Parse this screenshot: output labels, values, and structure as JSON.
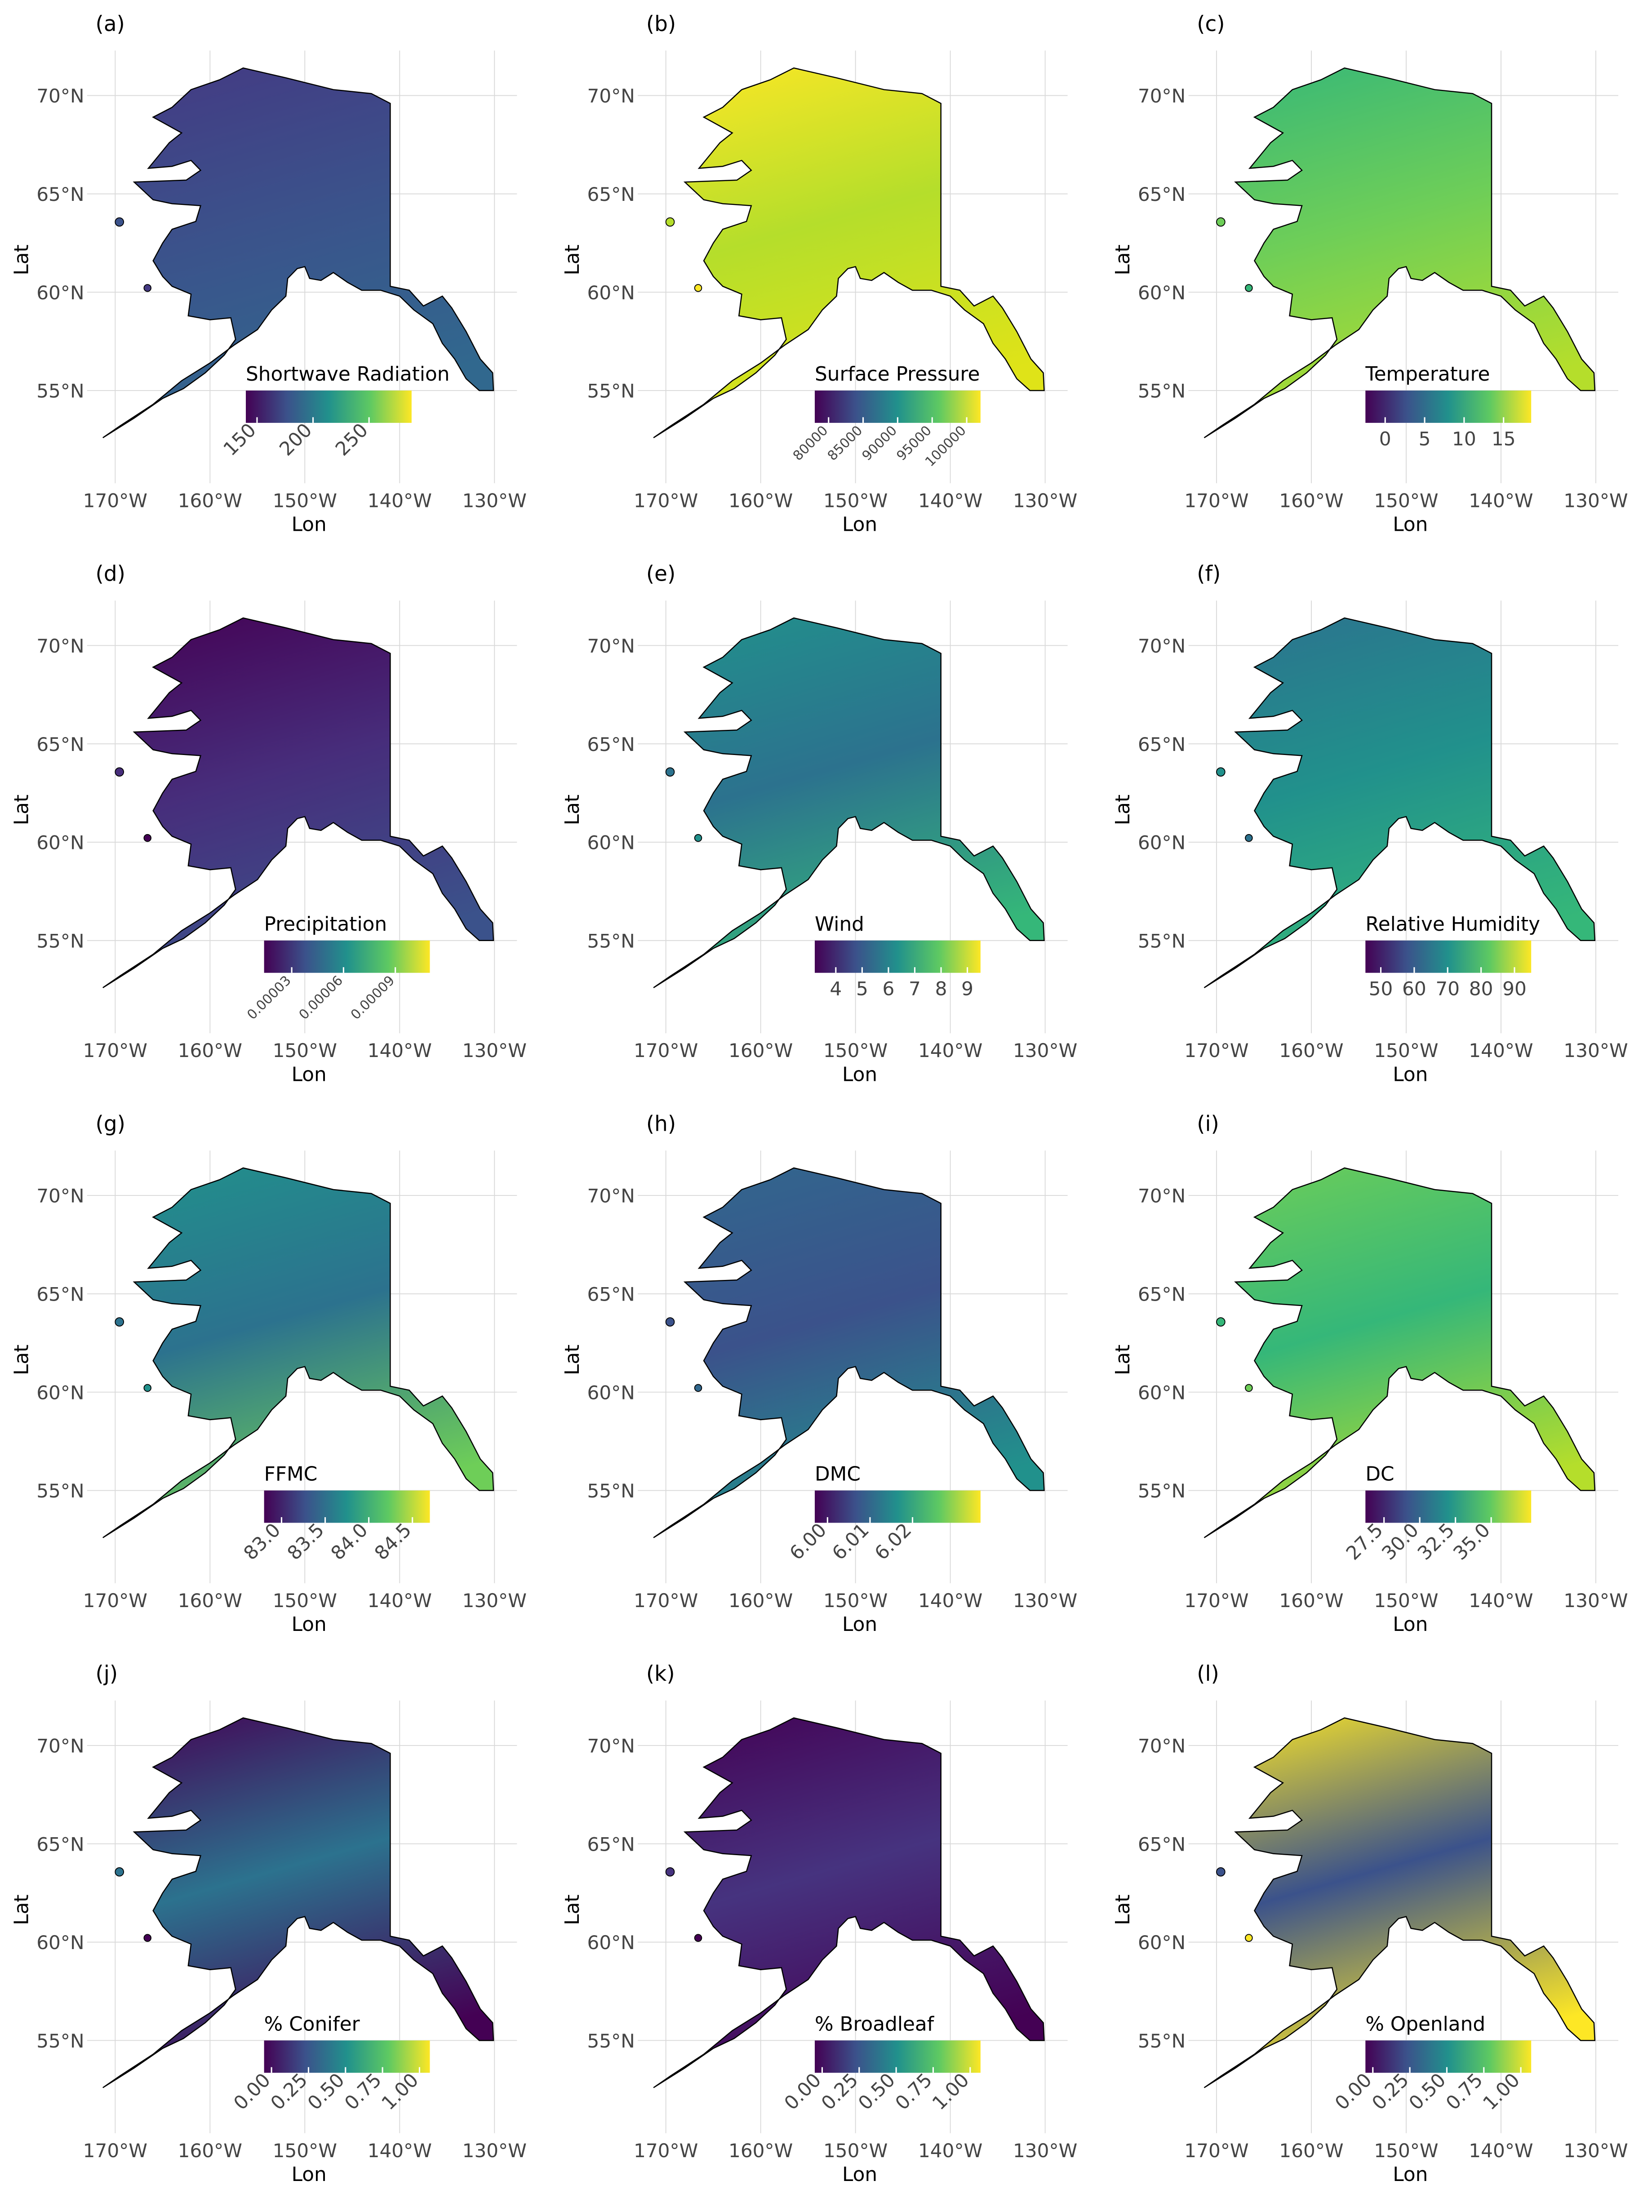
{
  "x_title": "Lon",
  "y_title": "Lat",
  "lat_ticks": [
    {
      "value": 55,
      "label": "55°N"
    },
    {
      "value": 60,
      "label": "60°N"
    },
    {
      "value": 65,
      "label": "65°N"
    },
    {
      "value": 70,
      "label": "70°N"
    }
  ],
  "lon_ticks": [
    {
      "value": -170,
      "label": "170°W"
    },
    {
      "value": -160,
      "label": "160°W"
    },
    {
      "value": -150,
      "label": "150°W"
    },
    {
      "value": -140,
      "label": "140°W"
    },
    {
      "value": -130,
      "label": "130°W"
    }
  ],
  "panels": [
    {
      "label": "(a)",
      "legend_title": "Shortwave Radiation",
      "colorbar": {
        "lim": [
          140,
          288
        ],
        "ticks": [
          150,
          200,
          250
        ]
      }
    },
    {
      "label": "(b)",
      "legend_title": "Surface Pressure",
      "colorbar": {
        "lim": [
          78000,
          102000
        ],
        "ticks": [
          80000,
          85000,
          90000,
          95000,
          100000
        ]
      }
    },
    {
      "label": "(c)",
      "legend_title": "Temperature",
      "colorbar": {
        "lim": [
          -2.5,
          18.5
        ],
        "ticks": [
          0,
          5,
          10,
          15
        ]
      }
    },
    {
      "label": "(d)",
      "legend_title": "Precipitation",
      "colorbar": {
        "lim": [
          1.4e-05,
          0.00011
        ],
        "ticks": [
          3e-05,
          6e-05,
          9e-05
        ]
      }
    },
    {
      "label": "(e)",
      "legend_title": "Wind",
      "colorbar": {
        "lim": [
          3.2,
          9.5
        ],
        "ticks": [
          4,
          5,
          6,
          7,
          8,
          9
        ]
      }
    },
    {
      "label": "(f)",
      "legend_title": "Relative Humidity",
      "colorbar": {
        "lim": [
          45.4,
          95
        ],
        "ticks": [
          50,
          60,
          70,
          80,
          90
        ]
      }
    },
    {
      "label": "(g)",
      "legend_title": "FFMC",
      "colorbar": {
        "lim": [
          82.8,
          84.7
        ],
        "ticks": [
          {
            "value": 83,
            "label": "83.0"
          },
          83.5,
          {
            "value": 84,
            "label": "84.0"
          },
          84.5
        ]
      }
    },
    {
      "label": "(h)",
      "legend_title": "DMC",
      "colorbar": {
        "lim": [
          5.997,
          6.036
        ],
        "ticks": [
          {
            "value": 6,
            "label": "6.00"
          },
          6.01,
          6.02
        ]
      }
    },
    {
      "label": "(i)",
      "legend_title": "DC",
      "colorbar": {
        "lim": [
          26.2,
          37.8
        ],
        "ticks": [
          27.5,
          {
            "value": 30,
            "label": "30.0"
          },
          32.5,
          {
            "value": 35,
            "label": "35.0"
          }
        ]
      }
    },
    {
      "label": "(j)",
      "legend_title": "% Conifer",
      "colorbar": {
        "lim": [
          -0.05,
          1.07
        ],
        "ticks": [
          {
            "value": 0,
            "label": "0.00"
          },
          0.25,
          {
            "value": 0.5,
            "label": "0.50"
          },
          0.75,
          {
            "value": 1,
            "label": "1.00"
          }
        ]
      }
    },
    {
      "label": "(k)",
      "legend_title": "% Broadleaf",
      "colorbar": {
        "lim": [
          -0.05,
          1.07
        ],
        "ticks": [
          {
            "value": 0,
            "label": "0.00"
          },
          0.25,
          {
            "value": 0.5,
            "label": "0.50"
          },
          0.75,
          {
            "value": 1,
            "label": "1.00"
          }
        ]
      }
    },
    {
      "label": "(l)",
      "legend_title": "% Openland",
      "colorbar": {
        "lim": [
          -0.05,
          1.07
        ],
        "ticks": [
          {
            "value": 0,
            "label": "0.00"
          },
          0.25,
          {
            "value": 0.5,
            "label": "0.50"
          },
          0.75,
          {
            "value": 1,
            "label": "1.00"
          }
        ]
      }
    }
  ]
}
